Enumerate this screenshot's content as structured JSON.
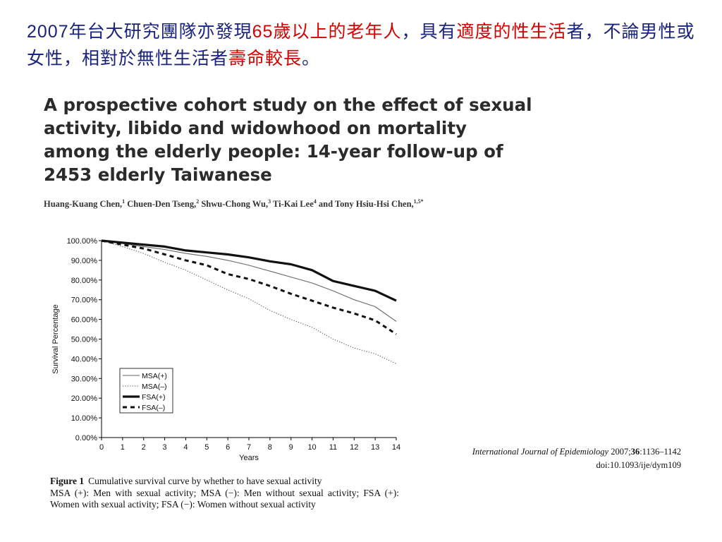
{
  "headline": {
    "seg1": "2007",
    "seg2": "年台大研究團隊亦發現",
    "seg3": "65",
    "seg4": "歲以上的老年人",
    "seg5": "，具有",
    "seg6": "適度的性生活",
    "seg7": "者，不論男性或女性，相對於無性生活者",
    "seg8": "壽命較長",
    "seg9": "。"
  },
  "paper": {
    "title": "A prospective cohort study on the effect of sexual activity, libido and widowhood on mortality among the elderly people: 14-year follow-up of 2453 elderly Taiwanese",
    "authors": [
      {
        "name": "Huang-Kuang Chen,",
        "sup": "1"
      },
      {
        "name": " Chuen-Den Tseng,",
        "sup": "2"
      },
      {
        "name": " Shwu-Chong Wu,",
        "sup": "3"
      },
      {
        "name": " Ti-Kai Lee",
        "sup": "4"
      },
      {
        "name": " and Tony Hsiu-Hsi Chen,",
        "sup": "1,5*"
      }
    ]
  },
  "citation": {
    "journal": "International Journal of Epidemiology",
    "year": "2007;",
    "volume": "36",
    "pages": ":1136–1142",
    "doi": "doi:10.1093/ije/dym109"
  },
  "caption": {
    "figure_label": "Figure 1",
    "line1": "Cumulative survival curve by whether to have sexual activity",
    "line2": "MSA (+): Men with sexual activity; MSA (−): Men without sexual activity; FSA (+): Women with sexual activity; FSA (−): Women without sexual activity"
  },
  "chart_data": {
    "type": "line",
    "xlabel": "Years",
    "ylabel": "Survival Percentage",
    "x": [
      0,
      1,
      2,
      3,
      4,
      5,
      6,
      7,
      8,
      9,
      10,
      11,
      12,
      13,
      14
    ],
    "xlim": [
      0,
      14
    ],
    "ylim": [
      0,
      100
    ],
    "y_ticks": [
      "0.00%",
      "10.00%",
      "20.00%",
      "30.00%",
      "40.00%",
      "50.00%",
      "60.00%",
      "70.00%",
      "80.00%",
      "90.00%",
      "100.00%"
    ],
    "x_ticks": [
      "0",
      "1",
      "2",
      "3",
      "4",
      "5",
      "6",
      "7",
      "8",
      "9",
      "10",
      "11",
      "12",
      "13",
      "14"
    ],
    "grid": false,
    "legend_position": "bottom-left",
    "series": [
      {
        "name": "MSA(+)",
        "style": "thin-solid",
        "values": [
          100,
          98.5,
          97,
          95.5,
          93.5,
          92,
          90,
          87.5,
          84.5,
          81.5,
          78.5,
          74.5,
          70,
          66.5,
          59
        ]
      },
      {
        "name": "MSA(–)",
        "style": "dotted",
        "values": [
          100,
          97,
          93.5,
          89,
          85,
          80,
          75,
          70.5,
          64.5,
          60,
          56,
          50,
          45.5,
          42.5,
          37.5
        ]
      },
      {
        "name": "FSA(+)",
        "style": "thick-solid",
        "values": [
          100,
          99,
          98,
          97,
          95,
          94,
          93,
          91.5,
          89.5,
          88,
          85,
          79.5,
          77,
          74.5,
          69.5
        ]
      },
      {
        "name": "FSA(–)",
        "style": "thick-dashed",
        "values": [
          100,
          98,
          96,
          93,
          90,
          87.5,
          83,
          80.5,
          77,
          73,
          69.5,
          66,
          63,
          59.5,
          52.5
        ]
      }
    ]
  }
}
